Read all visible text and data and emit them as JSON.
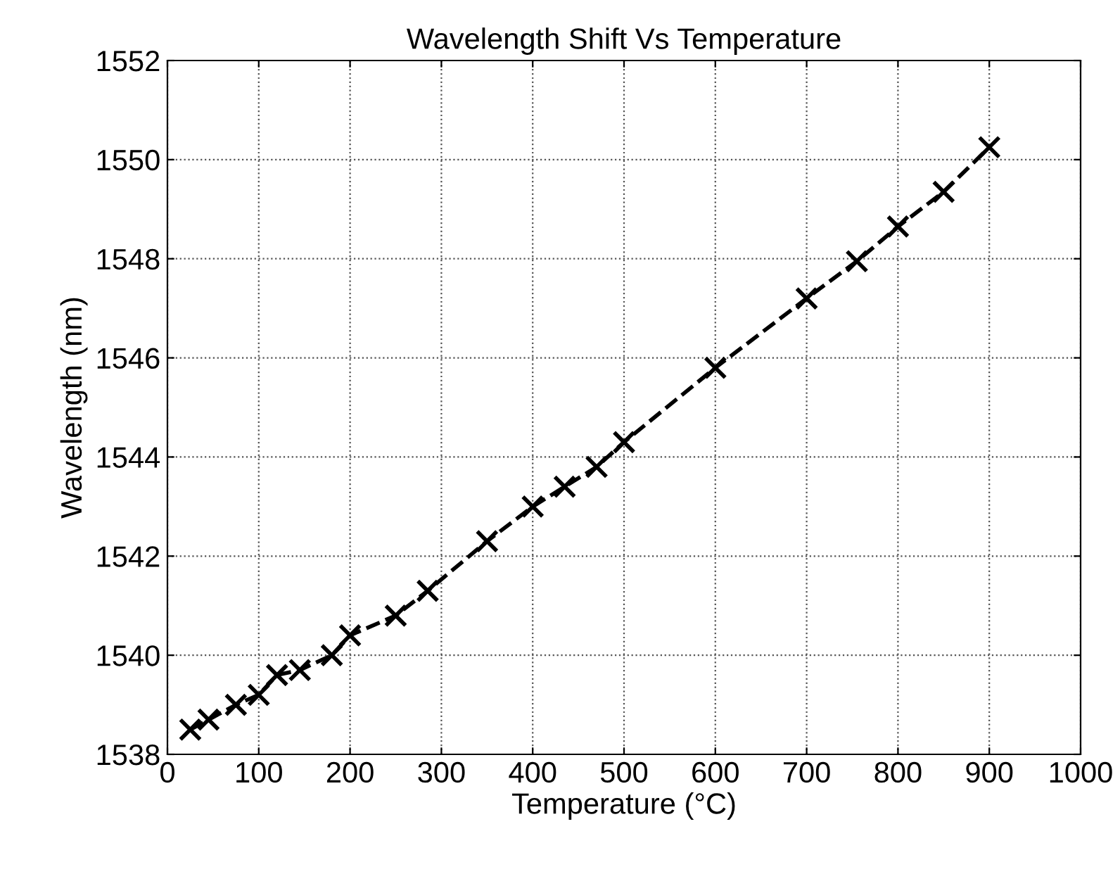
{
  "chart_data": {
    "type": "line",
    "title": "Wavelength Shift Vs Temperature",
    "xlabel": "Temperature (°C)",
    "ylabel": "Wavelength (nm)",
    "series": [
      {
        "color": "#000000",
        "x": [
          25,
          45,
          75,
          100,
          120,
          145,
          180,
          200,
          250,
          285,
          350,
          400,
          435,
          470,
          500,
          600,
          700,
          755,
          800,
          850,
          900
        ],
        "values": [
          1538.5,
          1538.7,
          1539.0,
          1539.2,
          1539.6,
          1539.7,
          1540.0,
          1540.4,
          1540.8,
          1541.3,
          1542.3,
          1543.0,
          1543.4,
          1543.8,
          1544.3,
          1545.8,
          1547.2,
          1547.95,
          1548.65,
          1549.35,
          1550.25
        ]
      }
    ],
    "xlim": [
      0,
      1000
    ],
    "xticks": [
      0,
      100,
      200,
      300,
      400,
      500,
      600,
      700,
      800,
      900,
      1000
    ],
    "ylim": [
      1538,
      1552
    ],
    "yticks": [
      1538,
      1540,
      1542,
      1544,
      1546,
      1548,
      1550,
      1552
    ],
    "grid": true,
    "marker": "cross",
    "line_style": "dashed",
    "legend": false
  }
}
